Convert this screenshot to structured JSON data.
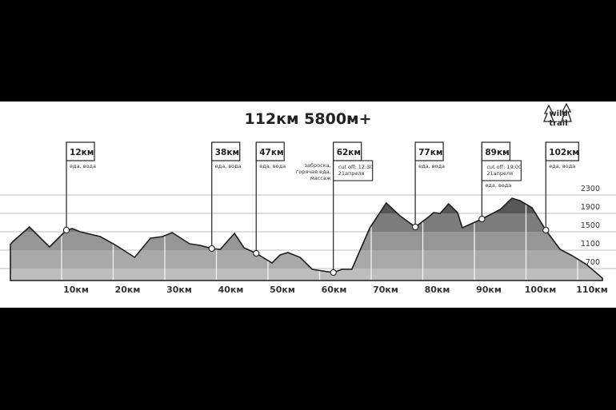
{
  "chart_data": {
    "type": "area",
    "title": "112км 5800м+",
    "logo_text": "wild trail",
    "xlabel": "",
    "ylabel": "",
    "x_unit": "км",
    "xlim": [
      0,
      112
    ],
    "ylim": [
      440,
      2400
    ],
    "grid": true,
    "x_ticks": [
      10,
      20,
      30,
      40,
      50,
      60,
      70,
      80,
      90,
      100,
      110
    ],
    "x_tick_labels": [
      "10км",
      "20км",
      "30км",
      "40км",
      "50км",
      "60км",
      "70км",
      "80км",
      "90км",
      "100км",
      "110км"
    ],
    "y_ticks": [
      2300,
      1900,
      1500,
      1100,
      700
    ],
    "y_tick_labels": [
      "2300",
      "1900",
      "1500",
      "1100",
      "700"
    ],
    "band_colors": [
      "#bdbdbd",
      "#a9a9a9",
      "#969696",
      "#7c7c7c",
      "#575757"
    ],
    "profile": {
      "x": [
        0,
        0.5,
        3.6,
        7.4,
        10.6,
        11.7,
        13.2,
        17.0,
        20.0,
        23.5,
        26.5,
        28.8,
        30.6,
        33.9,
        35.9,
        38.1,
        39.7,
        42.4,
        44.2,
        46.5,
        49.5,
        51.0,
        52.5,
        54.8,
        57.1,
        61.1,
        62.7,
        64.6,
        65.7,
        68.0,
        71.1,
        73.7,
        76.6,
        79.0,
        80.1,
        81.3,
        82.9,
        84.6,
        85.5,
        89.2,
        92.7,
        94.9,
        96.4,
        98.7,
        101.3,
        104.0,
        106.3,
        109.0,
        112
      ],
      "y": [
        1222,
        1291,
        1604,
        1170,
        1535,
        1570,
        1500,
        1396,
        1204,
        943,
        1361,
        1396,
        1483,
        1239,
        1204,
        1135,
        1117,
        1465,
        1152,
        1030,
        822,
        996,
        1048,
        943,
        683,
        613,
        683,
        683,
        978,
        1587,
        2126,
        1848,
        1604,
        1813,
        1917,
        1900,
        2109,
        1917,
        1587,
        1778,
        1987,
        2230,
        2178,
        2022,
        1535,
        1117,
        978,
        787,
        491
      ]
    },
    "markers": [
      {
        "label": "12км",
        "x": 10.6,
        "notes": [
          "еда, вода"
        ]
      },
      {
        "label": "38км",
        "x": 38.1,
        "notes": [
          "еда, вода"
        ]
      },
      {
        "label": "47км",
        "x": 46.5,
        "notes": [
          "еда, вода"
        ]
      },
      {
        "label": "62км",
        "x": 61.1,
        "left_notes": [
          "заброска,",
          "горячая еда,",
          "массаж"
        ],
        "cutoff": [
          "cut off: 12:30",
          "21апреля"
        ]
      },
      {
        "label": "77км",
        "x": 76.6,
        "notes": [
          "еда, вода"
        ]
      },
      {
        "label": "89км",
        "x": 89.2,
        "cutoff": [
          "cut off: 19:00",
          "21апреля"
        ],
        "notes_below": [
          "еда, вода"
        ]
      },
      {
        "label": "102км",
        "x": 101.3,
        "notes": [
          "еда, вода"
        ]
      }
    ]
  }
}
